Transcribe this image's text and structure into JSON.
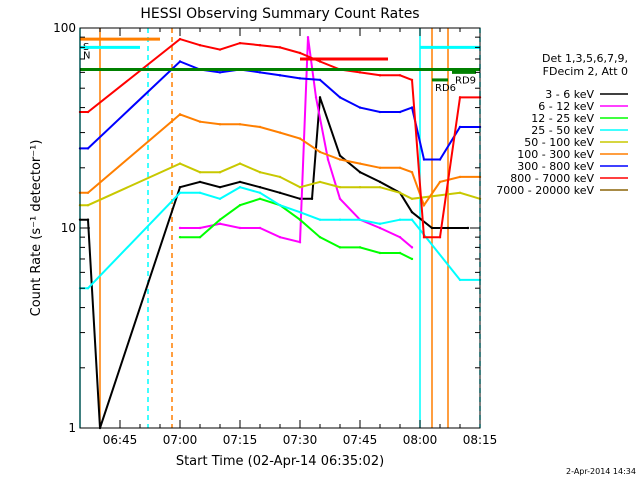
{
  "chart_data": {
    "type": "line",
    "title": "HESSI Observing Summary Count Rates",
    "xlabel": "Start Time (02-Apr-14 06:35:02)",
    "ylabel": "Count Rate (s⁻¹ detector⁻¹)",
    "yscale": "log",
    "ylim": [
      1,
      100
    ],
    "xlim_minutes_after_0635": [
      0,
      100
    ],
    "x_ticks": [
      {
        "label": "06:45",
        "minute": 10
      },
      {
        "label": "07:00",
        "minute": 25
      },
      {
        "label": "07:15",
        "minute": 40
      },
      {
        "label": "07:30",
        "minute": 55
      },
      {
        "label": "07:45",
        "minute": 70
      },
      {
        "label": "08:00",
        "minute": 85
      },
      {
        "label": "08:15",
        "minute": 100
      }
    ],
    "y_ticks": [
      {
        "label": "1",
        "value": 1
      },
      {
        "label": "10",
        "value": 10
      },
      {
        "label": "100",
        "value": 100
      }
    ],
    "legend_position": "right",
    "legend_header": [
      "Det 1,3,5,6,7,9,",
      "FDecim 2, Att 0"
    ],
    "series": [
      {
        "name": "3 - 6 keV",
        "color": "#000000",
        "x": [
          0,
          2,
          5,
          25,
          30,
          35,
          40,
          45,
          50,
          55,
          58,
          60,
          65,
          70,
          75,
          80,
          83,
          88,
          92,
          97
        ],
        "y": [
          11,
          11,
          1,
          16,
          17,
          16,
          17,
          16,
          15,
          14,
          14,
          45,
          23,
          19,
          17,
          15,
          12,
          10,
          10,
          10
        ]
      },
      {
        "name": "6 - 12 keV",
        "color": "#ff00ff",
        "x": [
          25,
          30,
          35,
          40,
          45,
          50,
          55,
          57,
          59,
          62,
          65,
          70,
          75,
          80,
          83
        ],
        "y": [
          10,
          10,
          10.5,
          10,
          10,
          9,
          8.5,
          90,
          45,
          22,
          14,
          11,
          10,
          9,
          8
        ]
      },
      {
        "name": "12 - 25 keV",
        "color": "#00ff00",
        "x": [
          25,
          30,
          35,
          40,
          45,
          50,
          55,
          60,
          65,
          70,
          75,
          80,
          83
        ],
        "y": [
          9,
          9,
          11,
          13,
          14,
          13,
          11,
          9,
          8,
          8,
          7.5,
          7.5,
          7
        ]
      },
      {
        "name": "25 - 50 keV",
        "color": "#00ffff",
        "x": [
          0,
          2,
          25,
          30,
          35,
          40,
          45,
          50,
          55,
          60,
          65,
          70,
          75,
          80,
          83,
          95,
          100
        ],
        "y": [
          5,
          5,
          15,
          15,
          14,
          16,
          15,
          13,
          12,
          11,
          11,
          11,
          10.5,
          11,
          11,
          5.5,
          5.5
        ]
      },
      {
        "name": "50 - 100 keV",
        "color": "#c8c800",
        "x": [
          0,
          2,
          25,
          30,
          35,
          40,
          45,
          50,
          55,
          60,
          65,
          70,
          75,
          80,
          83,
          95,
          100
        ],
        "y": [
          13,
          13,
          21,
          19,
          19,
          21,
          19,
          18,
          16,
          17,
          16,
          16,
          16,
          15,
          14,
          15,
          14
        ]
      },
      {
        "name": "100 - 300 keV",
        "color": "#ff7f00",
        "x": [
          0,
          2,
          25,
          30,
          35,
          40,
          45,
          50,
          55,
          60,
          65,
          70,
          75,
          80,
          83,
          86,
          90,
          95,
          100
        ],
        "y": [
          15,
          15,
          37,
          34,
          33,
          33,
          32,
          30,
          28,
          24,
          22,
          21,
          20,
          20,
          19,
          13,
          17,
          18,
          18
        ]
      },
      {
        "name": "300 - 800 keV",
        "color": "#0000ff",
        "x": [
          0,
          2,
          25,
          30,
          35,
          40,
          45,
          50,
          55,
          60,
          65,
          70,
          75,
          80,
          83,
          86,
          90,
          95,
          100
        ],
        "y": [
          25,
          25,
          68,
          62,
          60,
          62,
          60,
          58,
          56,
          55,
          45,
          40,
          38,
          38,
          40,
          22,
          22,
          32,
          32
        ]
      },
      {
        "name": "800 - 7000 keV",
        "color": "#ff0000",
        "x": [
          0,
          2,
          25,
          30,
          35,
          40,
          45,
          50,
          55,
          60,
          65,
          70,
          75,
          80,
          83,
          86,
          90,
          95,
          100
        ],
        "y": [
          38,
          38,
          88,
          82,
          78,
          84,
          82,
          80,
          75,
          68,
          62,
          60,
          58,
          58,
          55,
          9,
          9,
          45,
          45
        ]
      },
      {
        "name": "7000 - 20000 keV",
        "color": "#8b6508",
        "x": [],
        "y": []
      }
    ],
    "flag_bars": [
      {
        "label": "S",
        "color": "#ff7f00",
        "x_start": 0,
        "x_end": 20,
        "y": 88
      },
      {
        "label": "N",
        "color": "#00ffff",
        "x_start": 0,
        "x_end": 15,
        "y": 80
      },
      {
        "label": "",
        "color": "#ff0000",
        "x_start": 55,
        "x_end": 77,
        "y": 70
      },
      {
        "label": "",
        "color": "#008000",
        "x_start": 0,
        "x_end": 100,
        "y": 62
      },
      {
        "label": "RD6",
        "color": "#008000",
        "x_start": 88,
        "x_end": 92,
        "y": 55
      },
      {
        "label": "RD9",
        "color": "#008000",
        "x_start": 93,
        "x_end": 99,
        "y": 60
      },
      {
        "label": "",
        "color": "#00ffff",
        "x_start": 85,
        "x_end": 100,
        "y": 80
      }
    ],
    "vertical_markers": [
      {
        "minute": 0,
        "color": "#00ffff",
        "style": "solid"
      },
      {
        "minute": 5,
        "color": "#ff7f00",
        "style": "solid"
      },
      {
        "minute": 17,
        "color": "#00ffff",
        "style": "dashed"
      },
      {
        "minute": 23,
        "color": "#ff7f00",
        "style": "dashed"
      },
      {
        "minute": 85,
        "color": "#00ffff",
        "style": "solid"
      },
      {
        "minute": 88,
        "color": "#ff7f00",
        "style": "solid"
      },
      {
        "minute": 92,
        "color": "#ff7f00",
        "style": "solid"
      },
      {
        "minute": 100,
        "color": "#00ffff",
        "style": "dashed"
      }
    ],
    "grid": false
  },
  "footer": {
    "timestamp": "2-Apr-2014 14:34"
  }
}
